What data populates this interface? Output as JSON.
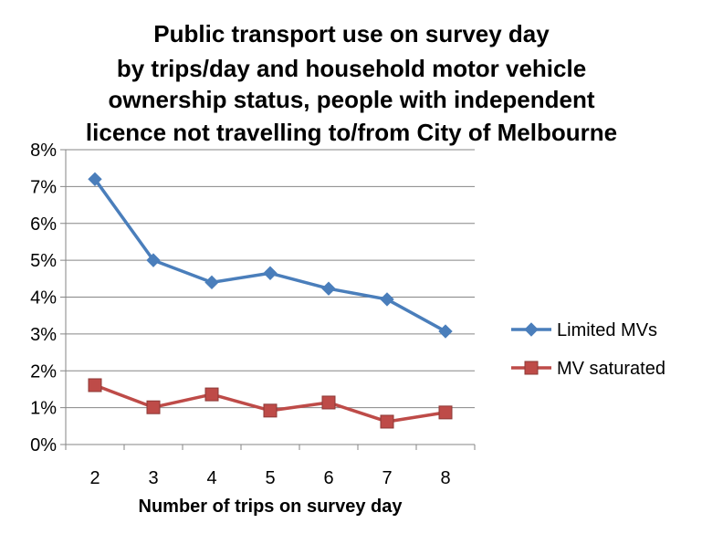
{
  "chart_data": {
    "type": "line",
    "title_lines": [
      "Public transport use on survey day",
      "by trips/day and household motor vehicle",
      "ownership status, people with independent",
      "licence not travelling to/from City of Melbourne"
    ],
    "xlabel": "Number of trips on survey day",
    "ylabel": "",
    "categories": [
      "2",
      "3",
      "4",
      "5",
      "6",
      "7",
      "8"
    ],
    "ylim": [
      0,
      8
    ],
    "yticks": [
      "0%",
      "1%",
      "2%",
      "3%",
      "4%",
      "5%",
      "6%",
      "7%",
      "8%"
    ],
    "grid": true,
    "legend_position": "right",
    "series": [
      {
        "name": "Limited MVs",
        "color": "#4A7EBB",
        "marker": "diamond",
        "values": [
          7.2,
          5.0,
          4.4,
          4.65,
          4.23,
          3.94,
          3.07
        ]
      },
      {
        "name": "MV saturated",
        "color": "#BE4B48",
        "marker": "square",
        "values": [
          1.61,
          1.01,
          1.36,
          0.92,
          1.14,
          0.62,
          0.87
        ]
      }
    ]
  }
}
